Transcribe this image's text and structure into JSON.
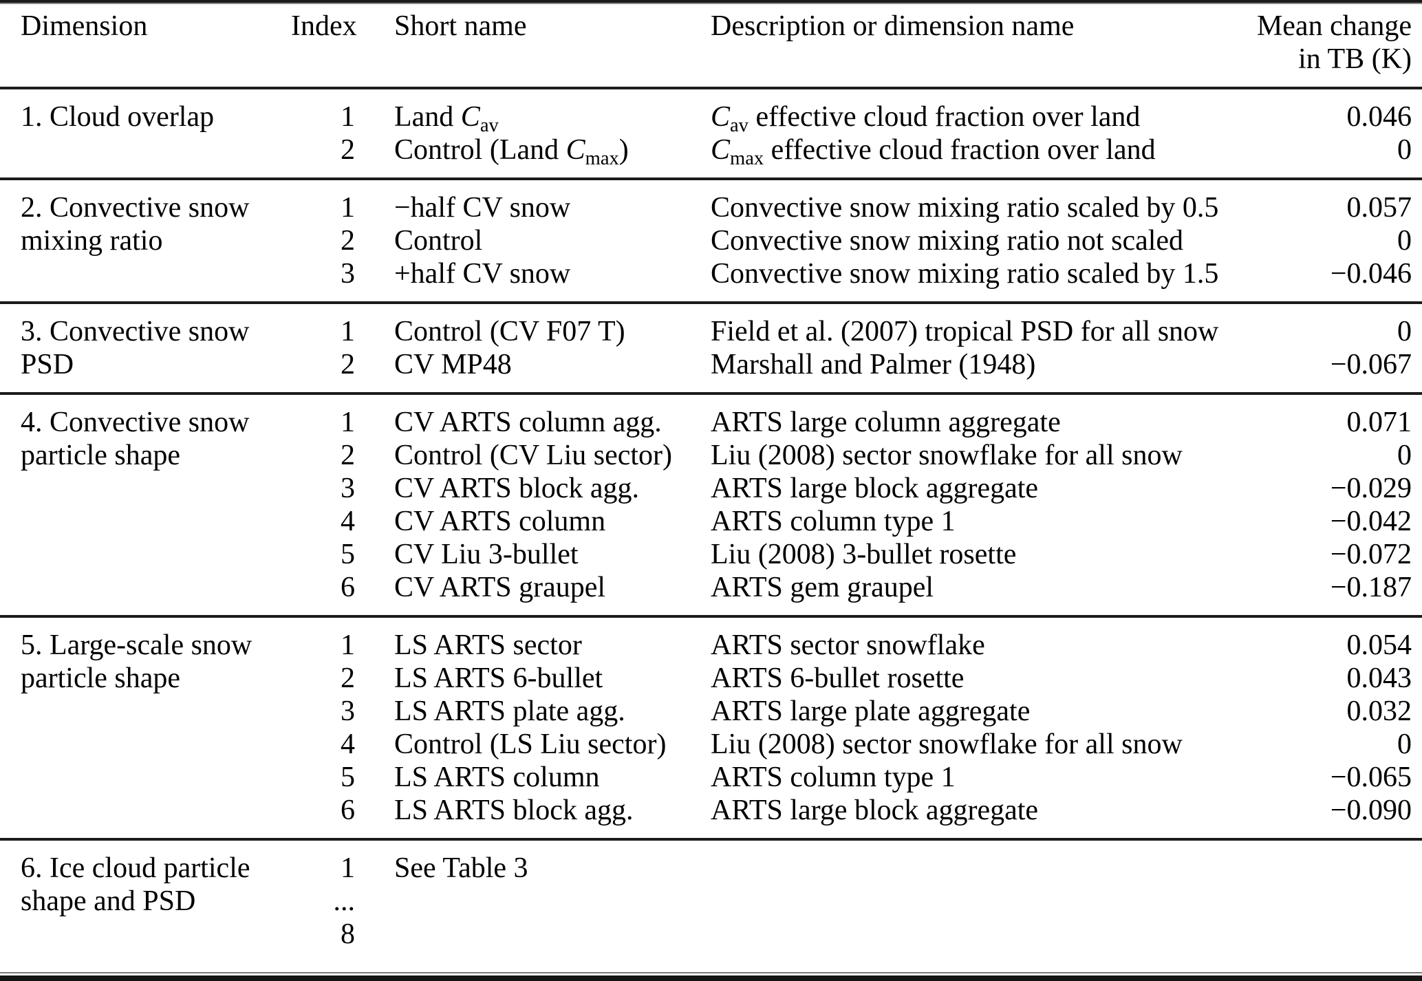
{
  "colors": {
    "background": "#ffffff",
    "text": "#000000",
    "rule": "#1b1b1b"
  },
  "header": {
    "col_dimension": "Dimension",
    "col_index": "Index",
    "col_short_name": "Short name",
    "col_description": "Description or dimension name",
    "col_mean_change_line1": "Mean change",
    "col_mean_change_line2": "in TB (K)"
  },
  "sections": [
    {
      "dimension_lines": [
        "1. Cloud overlap"
      ],
      "rows": [
        {
          "index": "1",
          "short_name": "Land <i>C</i><sub>av</sub>",
          "description": "<i>C</i><sub>av</sub> effective cloud fraction over land",
          "mean_change": "0.046"
        },
        {
          "index": "2",
          "short_name": "Control (Land <i>C</i><sub>max</sub>)",
          "description": "<i>C</i><sub>max</sub> effective cloud fraction over land",
          "mean_change": "0"
        }
      ]
    },
    {
      "dimension_lines": [
        "2. Convective snow",
        "mixing ratio"
      ],
      "rows": [
        {
          "index": "1",
          "short_name": "−half CV snow",
          "description": "Convective snow mixing ratio scaled by 0.5",
          "mean_change": "0.057"
        },
        {
          "index": "2",
          "short_name": "Control",
          "description": "Convective snow mixing ratio not scaled",
          "mean_change": "0"
        },
        {
          "index": "3",
          "short_name": "+half CV snow",
          "description": "Convective snow mixing ratio scaled by 1.5",
          "mean_change": "−0.046"
        }
      ]
    },
    {
      "dimension_lines": [
        "3. Convective snow",
        "PSD"
      ],
      "rows": [
        {
          "index": "1",
          "short_name": "Control (CV F07 T)",
          "description": "Field et al. (2007) tropical PSD for all snow",
          "mean_change": "0"
        },
        {
          "index": "2",
          "short_name": "CV MP48",
          "description": "Marshall and Palmer (1948)",
          "mean_change": "−0.067"
        }
      ]
    },
    {
      "dimension_lines": [
        "4. Convective snow",
        "particle shape"
      ],
      "rows": [
        {
          "index": "1",
          "short_name": "CV ARTS column agg.",
          "description": "ARTS large column aggregate",
          "mean_change": "0.071"
        },
        {
          "index": "2",
          "short_name": "Control (CV Liu sector)",
          "description": "Liu (2008) sector snowflake for all snow",
          "mean_change": "0"
        },
        {
          "index": "3",
          "short_name": "CV ARTS block agg.",
          "description": "ARTS large block aggregate",
          "mean_change": "−0.029"
        },
        {
          "index": "4",
          "short_name": "CV ARTS column",
          "description": "ARTS column type 1",
          "mean_change": "−0.042"
        },
        {
          "index": "5",
          "short_name": "CV Liu 3-bullet",
          "description": "Liu (2008) 3-bullet rosette",
          "mean_change": "−0.072"
        },
        {
          "index": "6",
          "short_name": "CV ARTS graupel",
          "description": "ARTS gem graupel",
          "mean_change": "−0.187"
        }
      ]
    },
    {
      "dimension_lines": [
        "5. Large-scale snow",
        "particle shape"
      ],
      "rows": [
        {
          "index": "1",
          "short_name": "LS ARTS sector",
          "description": "ARTS sector snowflake",
          "mean_change": "0.054"
        },
        {
          "index": "2",
          "short_name": "LS ARTS 6-bullet",
          "description": "ARTS 6-bullet rosette",
          "mean_change": "0.043"
        },
        {
          "index": "3",
          "short_name": "LS ARTS plate agg.",
          "description": "ARTS large plate aggregate",
          "mean_change": "0.032"
        },
        {
          "index": "4",
          "short_name": "Control (LS Liu sector)",
          "description": "Liu (2008) sector snowflake for all snow",
          "mean_change": "0"
        },
        {
          "index": "5",
          "short_name": "LS ARTS column",
          "description": "ARTS column type 1",
          "mean_change": "−0.065"
        },
        {
          "index": "6",
          "short_name": "LS ARTS block agg.",
          "description": "ARTS large block aggregate",
          "mean_change": "−0.090"
        }
      ]
    },
    {
      "dimension_lines": [
        "6. Ice cloud particle",
        "shape and PSD"
      ],
      "rows": [
        {
          "index": "1",
          "short_name": "See Table 3",
          "description": "",
          "mean_change": ""
        },
        {
          "index": "...",
          "short_name": "",
          "description": "",
          "mean_change": ""
        },
        {
          "index": "8",
          "short_name": "",
          "description": "",
          "mean_change": ""
        }
      ]
    }
  ]
}
